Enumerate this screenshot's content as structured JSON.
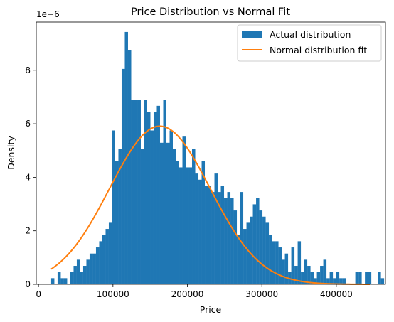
{
  "chart_data": {
    "type": "bar",
    "title": "Price Distribution vs Normal Fit",
    "xlabel": "Price",
    "ylabel": "Density",
    "y_offset_text": "1e−6",
    "xlim": [
      -3000,
      466000
    ],
    "ylim": [
      0,
      9.8
    ],
    "y_scale_exponent": -6,
    "x_ticks": [
      0,
      100000,
      200000,
      300000,
      400000
    ],
    "x_tick_labels": [
      "0",
      "100000",
      "200000",
      "300000",
      "400000"
    ],
    "y_ticks": [
      0,
      2,
      4,
      6,
      8
    ],
    "y_tick_labels": [
      "0",
      "2",
      "4",
      "6",
      "8"
    ],
    "grid": false,
    "legend_position": "upper right",
    "colors": {
      "histogram": "#1f77b4",
      "fit": "#ff7f0e"
    },
    "series": [
      {
        "name": "Actual distribution",
        "kind": "histogram",
        "bin_start": 17000,
        "bin_width": 4300,
        "values": [
          0.23,
          0,
          0.46,
          0.23,
          0.23,
          0,
          0.46,
          0.69,
          0.92,
          0.46,
          0.69,
          0.92,
          1.15,
          1.15,
          1.38,
          1.61,
          1.84,
          2.07,
          2.3,
          5.75,
          4.6,
          5.06,
          8.05,
          9.43,
          8.74,
          6.9,
          6.9,
          6.9,
          5.06,
          6.9,
          6.44,
          5.75,
          6.44,
          6.67,
          5.29,
          6.9,
          5.29,
          5.75,
          5.06,
          4.6,
          4.37,
          5.52,
          4.37,
          4.37,
          5.06,
          4.14,
          3.91,
          4.6,
          3.68,
          3.68,
          3.45,
          4.14,
          3.45,
          3.68,
          3.22,
          3.45,
          3.22,
          2.76,
          1.84,
          3.45,
          2.07,
          2.3,
          2.53,
          2.99,
          3.22,
          2.76,
          2.53,
          2.3,
          1.84,
          1.61,
          1.61,
          1.38,
          0.92,
          1.15,
          0.46,
          1.38,
          0.69,
          1.61,
          0.46,
          0.92,
          0.69,
          0.46,
          0.23,
          0.46,
          0.69,
          0.92,
          0.23,
          0.46,
          0.23,
          0.46,
          0.23,
          0.23,
          0,
          0,
          0,
          0.46,
          0.46,
          0,
          0.46,
          0.46,
          0,
          0,
          0.46,
          0.23,
          0,
          0,
          0,
          0,
          0,
          0,
          0,
          0,
          0,
          0.23,
          0,
          0,
          0,
          0.23
        ]
      },
      {
        "name": "Normal distribution fit",
        "kind": "line",
        "mean": 163000,
        "sd": 67500,
        "x_range": [
          17000,
          445000
        ]
      }
    ]
  }
}
